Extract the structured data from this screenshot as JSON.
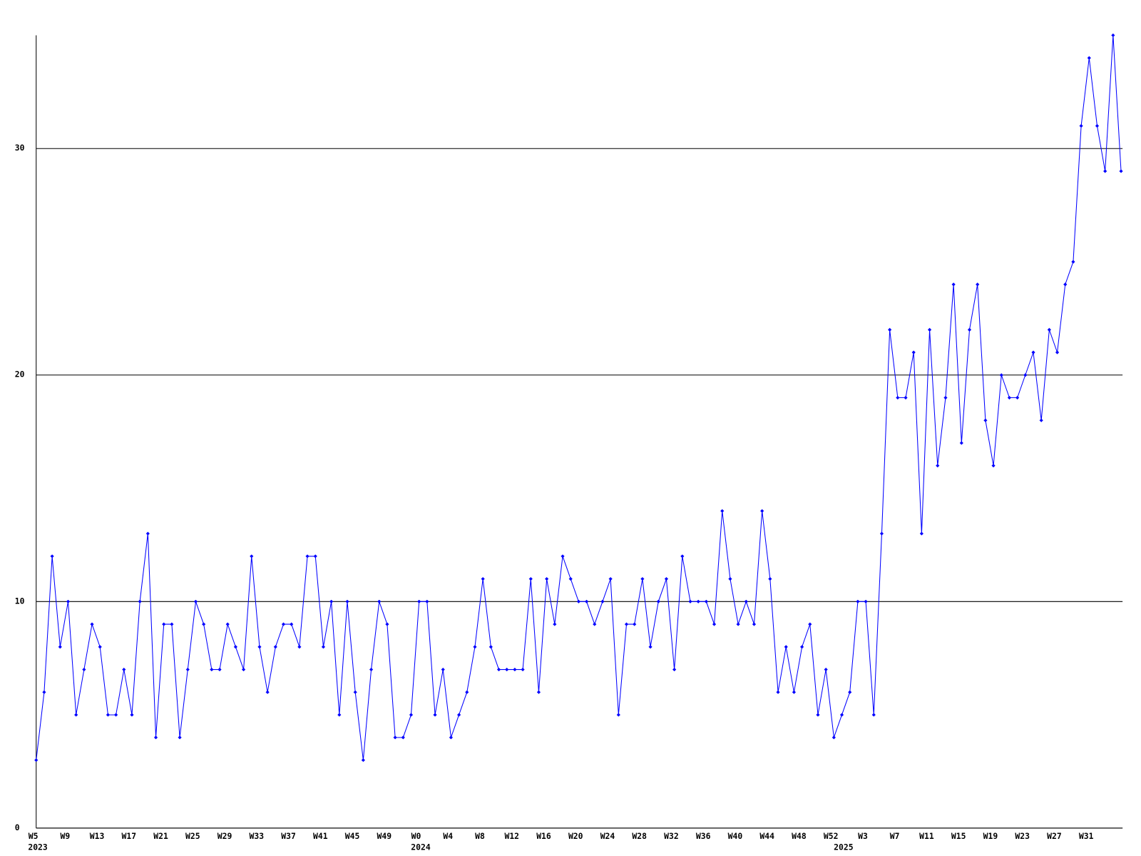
{
  "chart_data": {
    "type": "line",
    "categories": [
      "W5",
      null,
      null,
      null,
      "W9",
      null,
      null,
      null,
      "W13",
      null,
      null,
      null,
      "W17",
      null,
      null,
      null,
      "W21",
      null,
      null,
      null,
      "W25",
      null,
      null,
      null,
      "W29",
      null,
      null,
      null,
      "W33",
      null,
      null,
      null,
      "W37",
      null,
      null,
      null,
      "W41",
      null,
      null,
      null,
      "W45",
      null,
      null,
      null,
      "W49",
      null,
      null,
      null,
      "W0",
      null,
      null,
      null,
      "W4",
      null,
      null,
      null,
      "W8",
      null,
      null,
      null,
      "W12",
      null,
      null,
      null,
      "W16",
      null,
      null,
      null,
      "W20",
      null,
      null,
      null,
      "W24",
      null,
      null,
      null,
      "W28",
      null,
      null,
      null,
      "W32",
      null,
      null,
      null,
      "W36",
      null,
      null,
      null,
      "W40",
      null,
      null,
      null,
      "W44",
      null,
      null,
      null,
      "W48",
      null,
      null,
      null,
      "W52",
      null,
      null,
      null,
      "W3",
      null,
      null,
      null,
      "W7",
      null,
      null,
      null,
      "W11",
      null,
      null,
      null,
      "W15",
      null,
      null,
      null,
      "W19",
      null,
      null,
      null,
      "W23",
      null,
      null,
      null,
      "W27",
      null,
      null,
      null,
      "W31",
      null,
      null,
      null,
      null
    ],
    "years": [
      "2023",
      null,
      null,
      null,
      null,
      null,
      null,
      null,
      null,
      null,
      null,
      null,
      null,
      null,
      null,
      null,
      null,
      null,
      null,
      null,
      null,
      null,
      null,
      null,
      null,
      null,
      null,
      null,
      null,
      null,
      null,
      null,
      null,
      null,
      null,
      null,
      null,
      null,
      null,
      null,
      null,
      null,
      null,
      null,
      null,
      null,
      null,
      null,
      "2024",
      null,
      null,
      null,
      null,
      null,
      null,
      null,
      null,
      null,
      null,
      null,
      null,
      null,
      null,
      null,
      null,
      null,
      null,
      null,
      null,
      null,
      null,
      null,
      null,
      null,
      null,
      null,
      null,
      null,
      null,
      null,
      null,
      null,
      null,
      null,
      null,
      null,
      null,
      null,
      null,
      null,
      null,
      null,
      null,
      null,
      null,
      null,
      null,
      null,
      null,
      null,
      null,
      "2025",
      null,
      null,
      null,
      null,
      null,
      null,
      null,
      null,
      null,
      null,
      null,
      null,
      null,
      null,
      null,
      null,
      null,
      null,
      null,
      null,
      null,
      null,
      null,
      null,
      null,
      null,
      null,
      null,
      null,
      null,
      null,
      null,
      null,
      null,
      null
    ],
    "values": [
      3,
      6,
      12,
      8,
      10,
      5,
      7,
      9,
      8,
      5,
      5,
      7,
      5,
      10,
      13,
      4,
      9,
      9,
      4,
      7,
      10,
      9,
      7,
      7,
      9,
      8,
      7,
      12,
      8,
      6,
      8,
      9,
      9,
      8,
      12,
      12,
      8,
      10,
      5,
      10,
      6,
      3,
      7,
      10,
      9,
      4,
      4,
      5,
      10,
      10,
      5,
      7,
      4,
      5,
      6,
      8,
      11,
      8,
      7,
      7,
      7,
      7,
      11,
      6,
      11,
      9,
      12,
      11,
      10,
      10,
      9,
      10,
      11,
      5,
      9,
      9,
      11,
      8,
      10,
      11,
      7,
      12,
      10,
      10,
      10,
      9,
      14,
      11,
      9,
      10,
      9,
      14,
      11,
      6,
      8,
      6,
      8,
      9,
      5,
      7,
      4,
      5,
      6,
      10,
      10,
      5,
      13,
      22,
      19,
      19,
      21,
      13,
      22,
      16,
      19,
      24,
      17,
      22,
      24,
      18,
      16,
      20,
      19,
      19,
      20,
      21,
      18,
      22,
      21,
      24,
      25,
      31,
      34,
      31,
      29,
      35,
      29
    ],
    "color": "#0000ff",
    "ylim": [
      0,
      35
    ],
    "yticks": [
      0,
      10,
      20,
      30
    ],
    "grid": true
  }
}
